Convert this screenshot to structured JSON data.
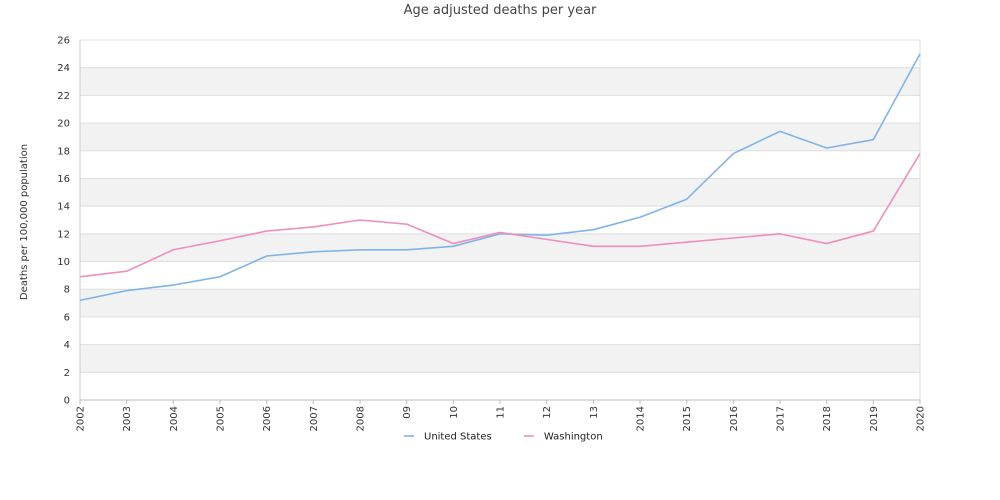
{
  "chart_data": {
    "type": "line",
    "title": "Age adjusted deaths per year",
    "ylabel": "Deaths per 100,000 population",
    "xlabel": "",
    "x": [
      "2002",
      "2003",
      "2004",
      "2005",
      "2006",
      "2007",
      "2008",
      "09",
      "10",
      "11",
      "12",
      "13",
      "2014",
      "2015",
      "2016",
      "2017",
      "2018",
      "2019",
      "2020"
    ],
    "ylim": [
      0,
      26
    ],
    "yticks": [
      0,
      2,
      4,
      6,
      8,
      10,
      12,
      14,
      16,
      18,
      20,
      22,
      24,
      26
    ],
    "grid": "alternating horizontal bands",
    "legend": "bottom-center",
    "series": [
      {
        "name": "United States",
        "color": "#7fb4ea",
        "values": [
          7.2,
          7.9,
          8.3,
          8.9,
          10.4,
          10.7,
          10.85,
          10.85,
          11.1,
          12.0,
          11.9,
          12.3,
          13.2,
          14.5,
          17.8,
          19.4,
          18.2,
          18.8,
          25.0
        ]
      },
      {
        "name": "Washington",
        "color": "#ee8fbe",
        "values": [
          8.9,
          9.3,
          10.85,
          11.5,
          12.2,
          12.5,
          13.0,
          12.7,
          11.3,
          12.1,
          11.6,
          11.1,
          11.1,
          11.4,
          11.7,
          12.0,
          11.3,
          12.2,
          17.8
        ]
      }
    ]
  }
}
